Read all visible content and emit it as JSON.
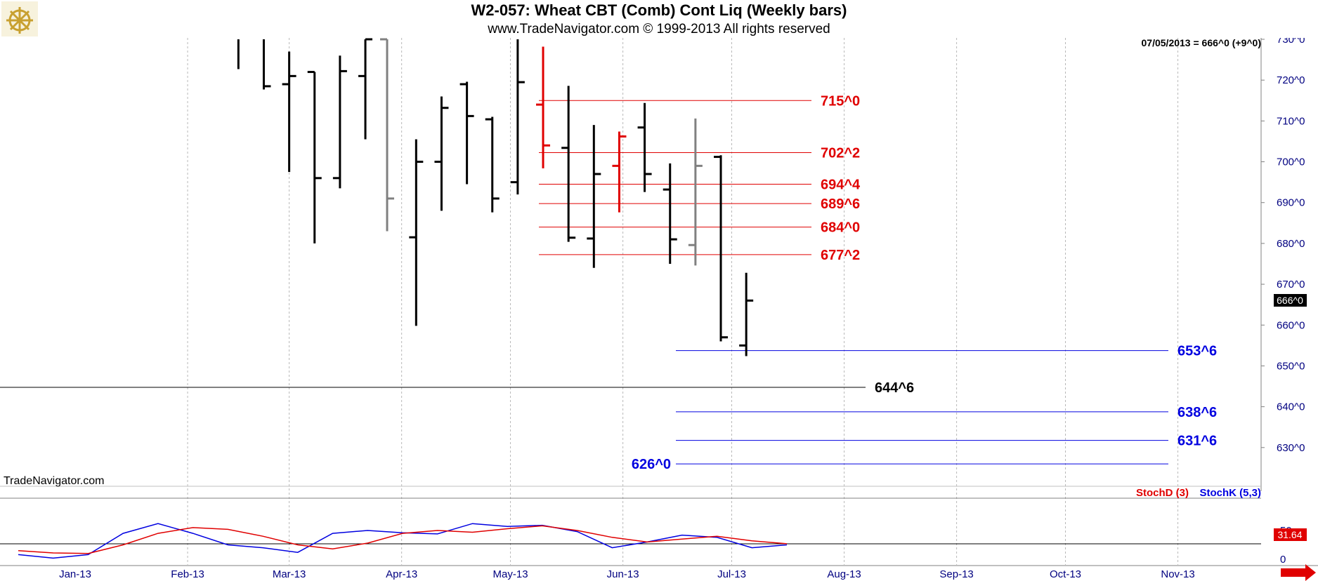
{
  "header": {
    "title": "W2-057:  Wheat CBT (Comb) Cont Liq  (Weekly bars)",
    "subtitle": "www.TradeNavigator.com © 1999-2013 All rights reserved",
    "logo_icon": "ship-wheel-logo-icon"
  },
  "watermark": "TradeNavigator.com",
  "quote_info": "07/05/2013 = 666^0 (+9^0)",
  "last_price_tag": "666^0",
  "oscillator": {
    "legend_d": "StochD (3)",
    "legend_k": "StochK (5,3)",
    "last_value": "31.64",
    "d_color": "#e00000",
    "k_color": "#0000e0",
    "y_ticks": [
      "50",
      "0"
    ]
  },
  "colors": {
    "bar_default": "#000000",
    "bar_gray": "#808080",
    "bar_red": "#e00000",
    "resistance": "#e00000",
    "support": "#0000e0",
    "mid_line": "#000000",
    "axis_text": "#000080"
  },
  "nav_icon": "right-arrow-icon",
  "chart_data": {
    "type": "ohlc",
    "title": "W2-057:  Wheat CBT (Comb) Cont Liq  (Weekly bars)",
    "y_unit": "cents (eighths notation ^)",
    "ylim": [
      620,
      730
    ],
    "y_ticks": [
      "730^0",
      "720^0",
      "710^0",
      "700^0",
      "690^0",
      "680^0",
      "670^0",
      "660^0",
      "650^0",
      "640^0",
      "630^0"
    ],
    "x_ticks": [
      "Jan-13",
      "Feb-13",
      "Mar-13",
      "Apr-13",
      "May-13",
      "Jun-13",
      "Jul-13",
      "Aug-13",
      "Sep-13",
      "Oct-13",
      "Nov-13"
    ],
    "grid": true,
    "bars": [
      {
        "date": "2013-02-15",
        "high": 730,
        "low": 722.7,
        "color": "#000000"
      },
      {
        "date": "2013-02-22",
        "high": 730,
        "low": 717.7,
        "close": 718.5,
        "color": "#000000"
      },
      {
        "date": "2013-03-01",
        "high": 727,
        "low": 697.5,
        "open": 719,
        "close": 721,
        "color": "#000000"
      },
      {
        "date": "2013-03-08",
        "high": 722,
        "low": 680,
        "open": 722,
        "close": 696,
        "color": "#000000"
      },
      {
        "date": "2013-03-15",
        "high": 726,
        "low": 693.5,
        "open": 696,
        "close": 722.2,
        "color": "#000000"
      },
      {
        "date": "2013-03-22",
        "high": 730,
        "low": 705.5,
        "open": 721,
        "close": 730,
        "color": "#000000"
      },
      {
        "date": "2013-03-28",
        "high": 730,
        "low": 683,
        "open": 730,
        "close": 691,
        "color": "#808080"
      },
      {
        "date": "2013-04-05",
        "high": 705.5,
        "low": 659.8,
        "open": 681.5,
        "close": 700,
        "color": "#000000"
      },
      {
        "date": "2013-04-12",
        "high": 716,
        "low": 688,
        "open": 700,
        "close": 713.2,
        "color": "#000000"
      },
      {
        "date": "2013-04-19",
        "high": 719.6,
        "low": 694.5,
        "open": 719,
        "close": 711.2,
        "color": "#000000"
      },
      {
        "date": "2013-04-26",
        "high": 711,
        "low": 687.6,
        "open": 710.4,
        "close": 691,
        "color": "#000000"
      },
      {
        "date": "2013-05-03",
        "high": 730,
        "low": 692,
        "open": 695,
        "close": 719.5,
        "color": "#000000"
      },
      {
        "date": "2013-05-10",
        "high": 728.2,
        "low": 698.4,
        "open": 714,
        "close": 704,
        "color": "#e00000"
      },
      {
        "date": "2013-05-17",
        "high": 718.6,
        "low": 680.4,
        "open": 703.4,
        "close": 681.4,
        "color": "#000000"
      },
      {
        "date": "2013-05-24",
        "high": 709,
        "low": 674,
        "open": 681.2,
        "close": 697,
        "color": "#000000"
      },
      {
        "date": "2013-05-31",
        "high": 707.4,
        "low": 687.6,
        "open": 699,
        "close": 706.2,
        "color": "#e00000"
      },
      {
        "date": "2013-06-07",
        "high": 714.4,
        "low": 692.6,
        "open": 708.4,
        "close": 697,
        "color": "#000000"
      },
      {
        "date": "2013-06-14",
        "high": 699.6,
        "low": 675,
        "open": 693.2,
        "close": 681,
        "color": "#000000"
      },
      {
        "date": "2013-06-21",
        "high": 710.6,
        "low": 674.6,
        "open": 679.6,
        "close": 699,
        "color": "#808080"
      },
      {
        "date": "2013-06-28",
        "high": 701.6,
        "low": 656,
        "open": 701.2,
        "close": 657,
        "color": "#000000"
      },
      {
        "date": "2013-07-05",
        "high": 672.8,
        "low": 652.4,
        "open": 655,
        "close": 666,
        "color": "#000000"
      }
    ],
    "levels": [
      {
        "label": "715^0",
        "value": 715,
        "kind": "resistance"
      },
      {
        "label": "702^2",
        "value": 702.25,
        "kind": "resistance"
      },
      {
        "label": "694^4",
        "value": 694.5,
        "kind": "resistance"
      },
      {
        "label": "689^6",
        "value": 689.75,
        "kind": "resistance"
      },
      {
        "label": "684^0",
        "value": 684,
        "kind": "resistance"
      },
      {
        "label": "677^2",
        "value": 677.25,
        "kind": "resistance"
      },
      {
        "label": "653^6",
        "value": 653.75,
        "kind": "support"
      },
      {
        "label": "644^6",
        "value": 644.75,
        "kind": "mid"
      },
      {
        "label": "638^6",
        "value": 638.75,
        "kind": "support"
      },
      {
        "label": "631^6",
        "value": 631.75,
        "kind": "support"
      },
      {
        "label": "626^0",
        "value": 626,
        "kind": "support"
      }
    ],
    "stoch_d": [
      15,
      11,
      10,
      25,
      45,
      55,
      52,
      40,
      25,
      18,
      28,
      45,
      50,
      47,
      53,
      58,
      50,
      38,
      30,
      35,
      40,
      32,
      27
    ],
    "stoch_k": [
      8,
      2,
      8,
      45,
      62,
      45,
      25,
      20,
      12,
      45,
      50,
      46,
      44,
      62,
      57,
      59,
      48,
      20,
      30,
      42,
      38,
      20,
      25
    ],
    "stoch_ylim": [
      -10,
      100
    ]
  }
}
